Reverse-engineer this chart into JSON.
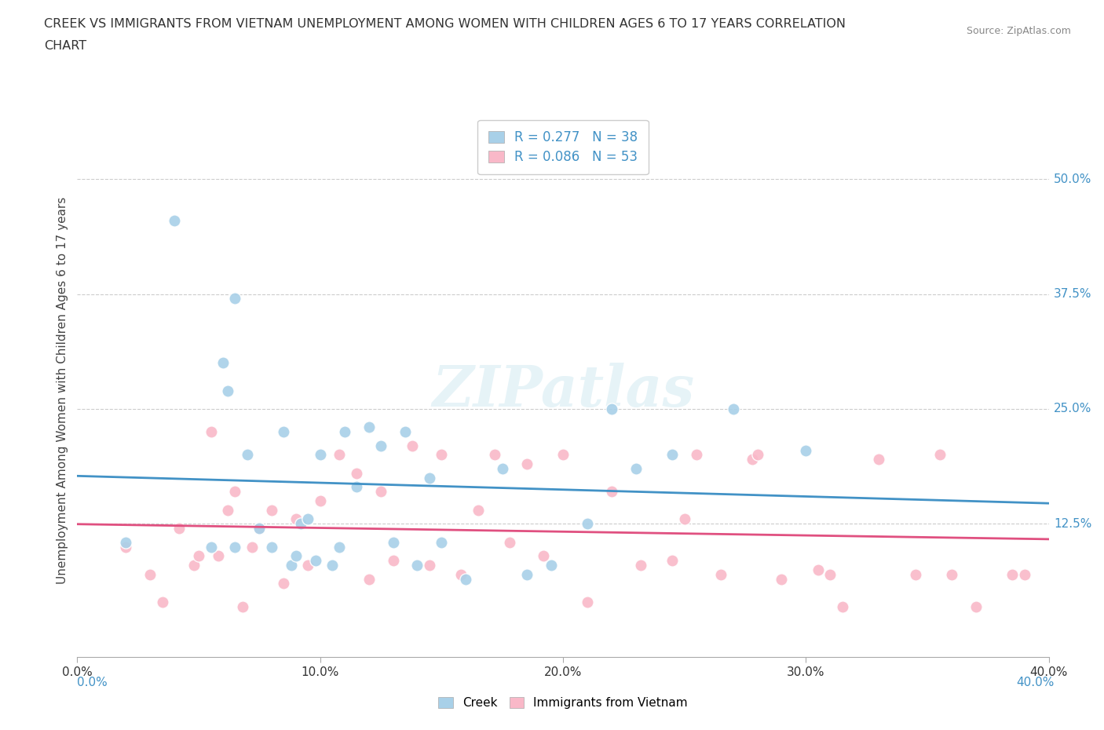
{
  "title_line1": "CREEK VS IMMIGRANTS FROM VIETNAM UNEMPLOYMENT AMONG WOMEN WITH CHILDREN AGES 6 TO 17 YEARS CORRELATION",
  "title_line2": "CHART",
  "source_text": "Source: ZipAtlas.com",
  "ylabel": "Unemployment Among Women with Children Ages 6 to 17 years",
  "xlim": [
    0.0,
    0.4
  ],
  "ylim": [
    -0.02,
    0.56
  ],
  "xticks": [
    0.0,
    0.1,
    0.2,
    0.3,
    0.4
  ],
  "xtick_labels": [
    "0.0%",
    "10.0%",
    "20.0%",
    "30.0%",
    "40.0%"
  ],
  "ytick_positions": [
    0.125,
    0.25,
    0.375,
    0.5
  ],
  "ytick_labels": [
    "12.5%",
    "25.0%",
    "37.5%",
    "50.0%"
  ],
  "creek_dot_color": "#a8d0e8",
  "vietnam_dot_color": "#f9b8c8",
  "creek_line_color": "#4292c6",
  "vietnam_line_color": "#e05080",
  "creek_R": 0.277,
  "creek_N": 38,
  "vietnam_R": 0.086,
  "vietnam_N": 53,
  "watermark": "ZIPatlas",
  "legend_label_creek": "Creek",
  "legend_label_vietnam": "Immigrants from Vietnam",
  "creek_scatter_x": [
    0.02,
    0.04,
    0.055,
    0.06,
    0.062,
    0.065,
    0.065,
    0.07,
    0.075,
    0.08,
    0.085,
    0.088,
    0.09,
    0.092,
    0.095,
    0.098,
    0.1,
    0.105,
    0.108,
    0.11,
    0.115,
    0.12,
    0.125,
    0.13,
    0.135,
    0.14,
    0.145,
    0.15,
    0.16,
    0.175,
    0.185,
    0.195,
    0.21,
    0.22,
    0.23,
    0.245,
    0.27,
    0.3
  ],
  "creek_scatter_y": [
    0.105,
    0.455,
    0.1,
    0.3,
    0.27,
    0.1,
    0.37,
    0.2,
    0.12,
    0.1,
    0.225,
    0.08,
    0.09,
    0.125,
    0.13,
    0.085,
    0.2,
    0.08,
    0.1,
    0.225,
    0.165,
    0.23,
    0.21,
    0.105,
    0.225,
    0.08,
    0.175,
    0.105,
    0.065,
    0.185,
    0.07,
    0.08,
    0.125,
    0.25,
    0.185,
    0.2,
    0.25,
    0.205
  ],
  "vietnam_scatter_x": [
    0.02,
    0.03,
    0.035,
    0.042,
    0.048,
    0.05,
    0.055,
    0.058,
    0.062,
    0.065,
    0.068,
    0.072,
    0.075,
    0.08,
    0.085,
    0.09,
    0.095,
    0.1,
    0.108,
    0.115,
    0.12,
    0.125,
    0.13,
    0.138,
    0.145,
    0.15,
    0.158,
    0.165,
    0.172,
    0.178,
    0.185,
    0.192,
    0.2,
    0.21,
    0.22,
    0.232,
    0.245,
    0.255,
    0.265,
    0.278,
    0.29,
    0.305,
    0.315,
    0.33,
    0.345,
    0.36,
    0.37,
    0.385,
    0.39,
    0.355,
    0.28,
    0.31,
    0.25
  ],
  "vietnam_scatter_y": [
    0.1,
    0.07,
    0.04,
    0.12,
    0.08,
    0.09,
    0.225,
    0.09,
    0.14,
    0.16,
    0.035,
    0.1,
    0.12,
    0.14,
    0.06,
    0.13,
    0.08,
    0.15,
    0.2,
    0.18,
    0.065,
    0.16,
    0.085,
    0.21,
    0.08,
    0.2,
    0.07,
    0.14,
    0.2,
    0.105,
    0.19,
    0.09,
    0.2,
    0.04,
    0.16,
    0.08,
    0.085,
    0.2,
    0.07,
    0.195,
    0.065,
    0.075,
    0.035,
    0.195,
    0.07,
    0.07,
    0.035,
    0.07,
    0.07,
    0.2,
    0.2,
    0.07,
    0.13
  ]
}
